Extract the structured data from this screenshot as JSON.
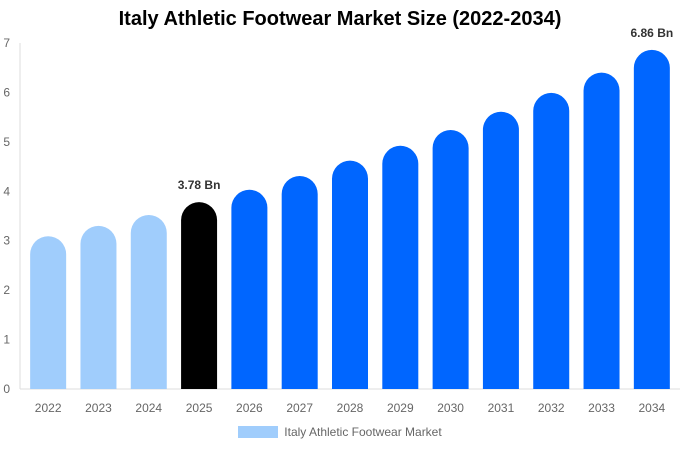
{
  "chart_data": {
    "type": "bar",
    "title": "Italy Athletic Footwear Market Size (2022-2034)",
    "xlabel": "",
    "ylabel": "",
    "ylim": [
      0,
      7
    ],
    "yticks": [
      0,
      1,
      2,
      3,
      4,
      5,
      6,
      7
    ],
    "grid": false,
    "legend_placement": "bottom",
    "categories": [
      "2022",
      "2023",
      "2024",
      "2025",
      "2026",
      "2027",
      "2028",
      "2029",
      "2030",
      "2031",
      "2032",
      "2033",
      "2034"
    ],
    "series": [
      {
        "name": "Italy Athletic Footwear Market",
        "values": [
          3.09,
          3.3,
          3.52,
          3.78,
          4.03,
          4.31,
          4.62,
          4.92,
          5.24,
          5.61,
          5.99,
          6.4,
          6.86
        ]
      }
    ],
    "bar_colors": [
      "#a0cdfc",
      "#a0cdfc",
      "#a0cdfc",
      "#000000",
      "#0066ff",
      "#0066ff",
      "#0066ff",
      "#0066ff",
      "#0066ff",
      "#0066ff",
      "#0066ff",
      "#0066ff",
      "#0066ff"
    ],
    "legend_color": "#a0cdfc",
    "data_labels": [
      {
        "category": "2025",
        "text": "3.78 Bn"
      },
      {
        "category": "2034",
        "text": "6.86 Bn"
      }
    ]
  }
}
